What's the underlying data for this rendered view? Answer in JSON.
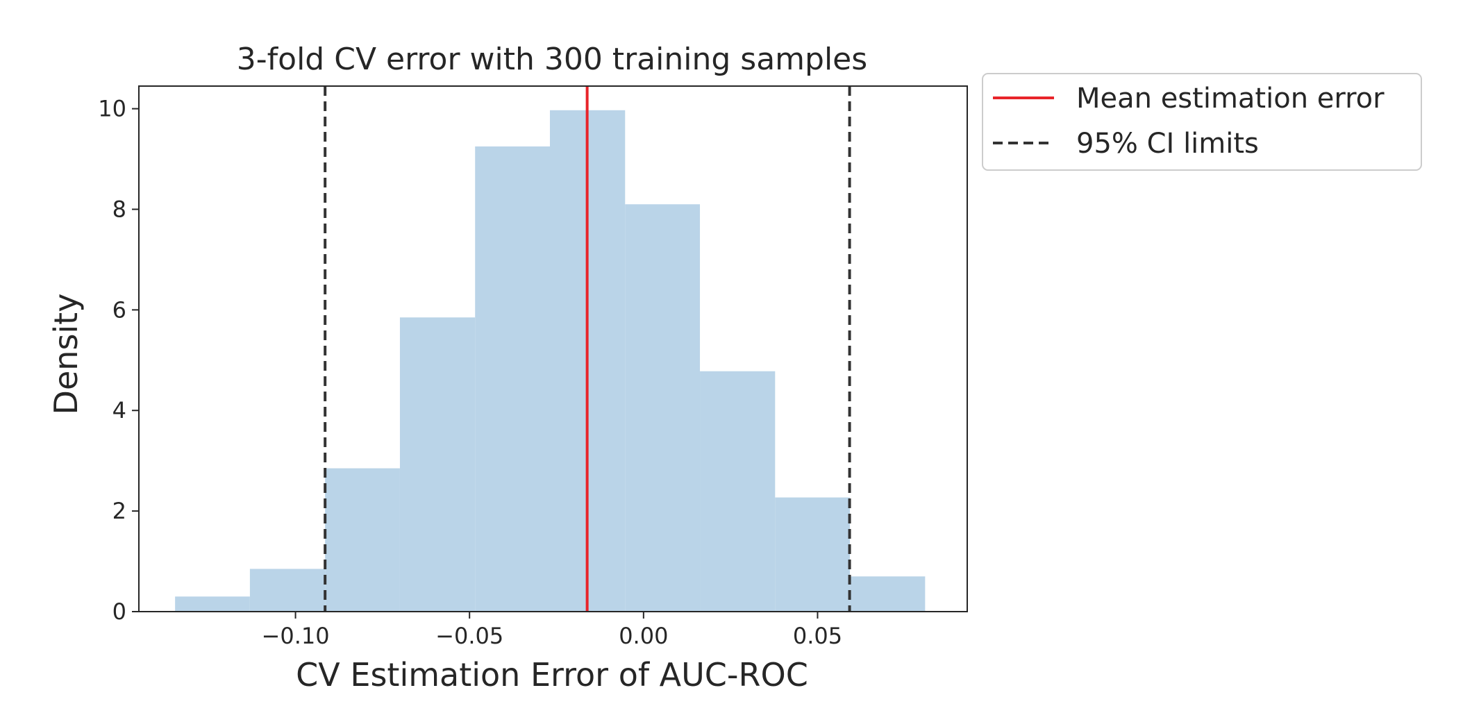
{
  "chart_data": {
    "type": "bar",
    "title": "3-fold CV error with 300 training samples",
    "xlabel": "CV Estimation Error of AUC-ROC",
    "ylabel": "Density",
    "xlim": [
      -0.145,
      0.093
    ],
    "ylim": [
      0,
      10.45
    ],
    "xticks": [
      {
        "value": -0.1,
        "label": "−0.10"
      },
      {
        "value": -0.05,
        "label": "−0.05"
      },
      {
        "value": 0.0,
        "label": "0.00"
      },
      {
        "value": 0.05,
        "label": "0.05"
      }
    ],
    "yticks": [
      {
        "value": 0,
        "label": "0"
      },
      {
        "value": 2,
        "label": "2"
      },
      {
        "value": 4,
        "label": "4"
      },
      {
        "value": 6,
        "label": "6"
      },
      {
        "value": 8,
        "label": "8"
      },
      {
        "value": 10,
        "label": "10"
      }
    ],
    "bins": [
      {
        "x0": -0.1346,
        "x1": -0.1131,
        "density": 0.3
      },
      {
        "x0": -0.1131,
        "x1": -0.0915,
        "density": 0.85
      },
      {
        "x0": -0.0915,
        "x1": -0.07,
        "density": 2.85
      },
      {
        "x0": -0.07,
        "x1": -0.0484,
        "density": 5.85
      },
      {
        "x0": -0.0484,
        "x1": -0.0269,
        "density": 9.25
      },
      {
        "x0": -0.0269,
        "x1": -0.0053,
        "density": 9.97
      },
      {
        "x0": -0.0053,
        "x1": 0.0162,
        "density": 8.1
      },
      {
        "x0": 0.0162,
        "x1": 0.0378,
        "density": 4.78
      },
      {
        "x0": 0.0378,
        "x1": 0.0593,
        "density": 2.27
      },
      {
        "x0": 0.0593,
        "x1": 0.0809,
        "density": 0.7
      }
    ],
    "mean_line": {
      "x": -0.0162,
      "label": "Mean estimation error",
      "color": "#e8242a"
    },
    "ci_lines": {
      "x": [
        -0.0915,
        0.0592
      ],
      "label": "95% CI limits",
      "color": "#333333"
    },
    "bar_color": "#bad4e8",
    "grid": false,
    "legend_position": "outside-top-right"
  }
}
